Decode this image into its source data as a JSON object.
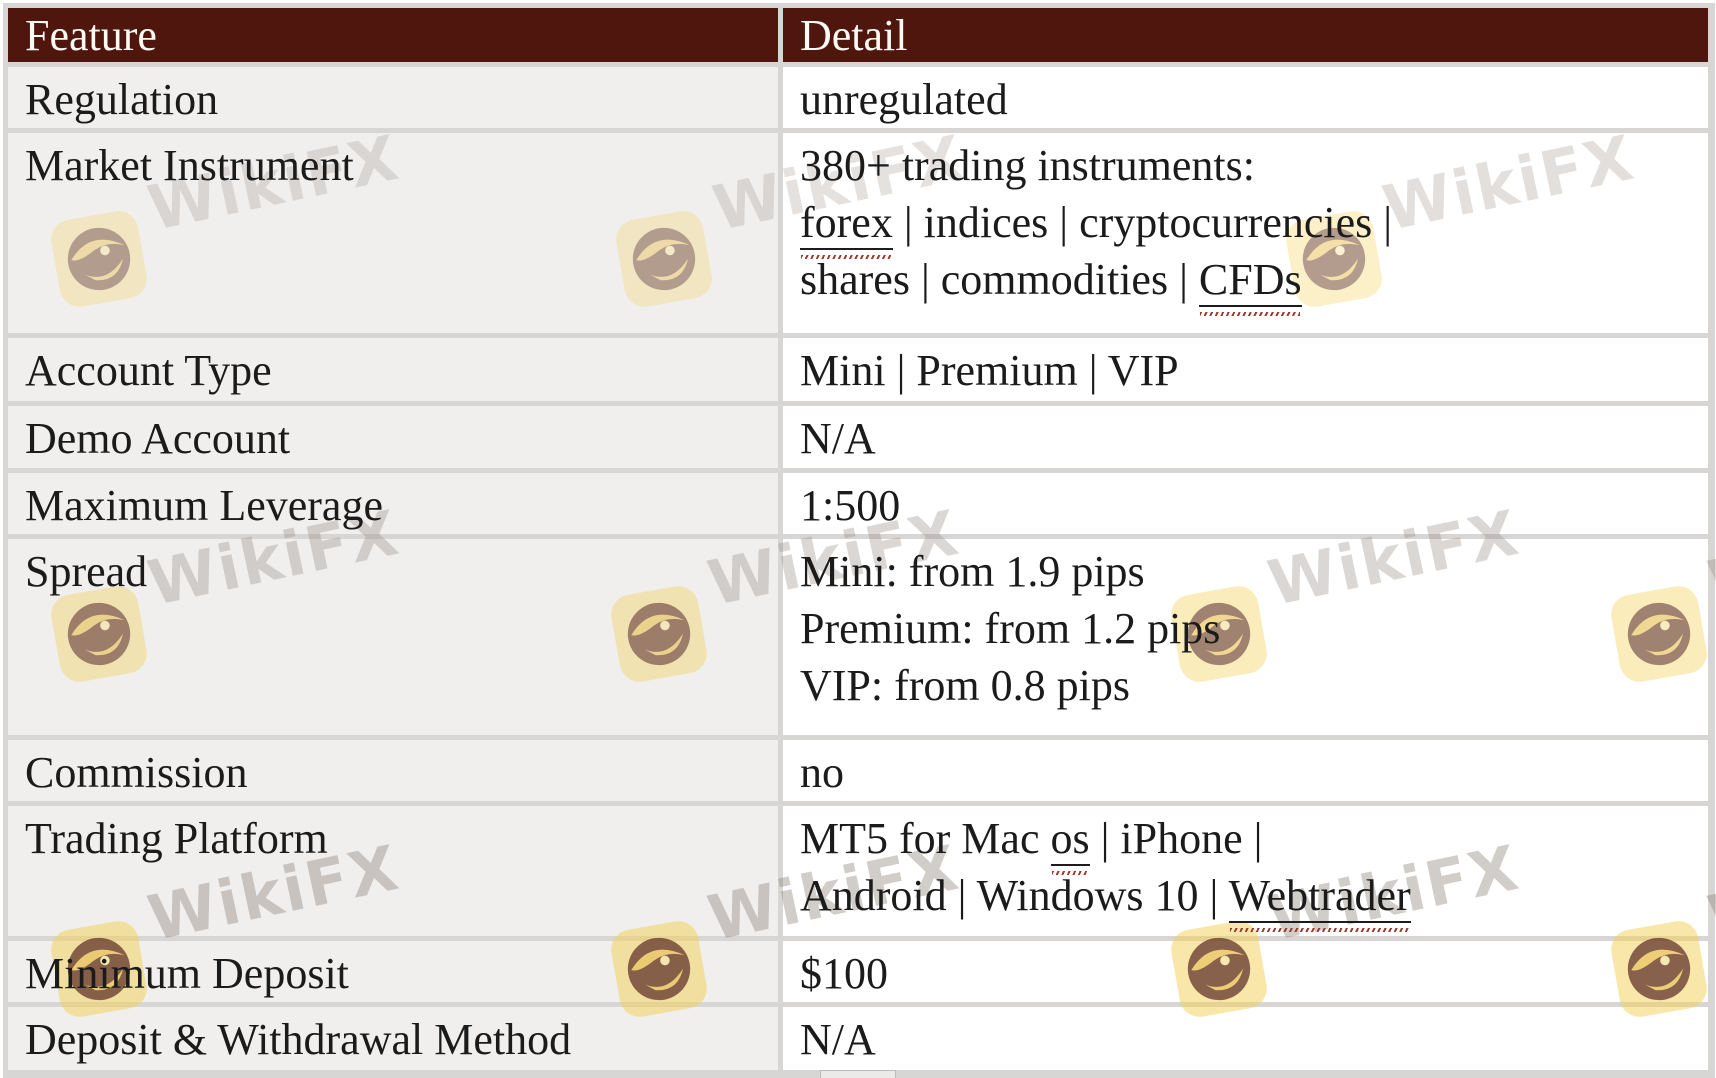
{
  "header": {
    "feature_col": "Feature",
    "detail_col": "Detail"
  },
  "rows": [
    {
      "feature": "Regulation",
      "detail": [
        [
          {
            "t": "unregulated"
          }
        ]
      ]
    },
    {
      "feature": "Market Instrument",
      "detail": [
        [
          {
            "t": "380+ trading instruments:"
          }
        ],
        [
          {
            "t": "forex",
            "link": true
          },
          {
            "t": " | indices | cryptocurrencies |"
          }
        ],
        [
          {
            "t": "shares | commodities | "
          },
          {
            "t": "CFDs",
            "link": true
          }
        ]
      ]
    },
    {
      "feature": "Account Type",
      "detail": [
        [
          {
            "t": "Mini | Premium | VIP"
          }
        ]
      ]
    },
    {
      "feature": "Demo Account",
      "detail": [
        [
          {
            "t": "N/A"
          }
        ]
      ]
    },
    {
      "feature": "Maximum Leverage",
      "detail": [
        [
          {
            "t": "1:500"
          }
        ]
      ]
    },
    {
      "feature": "Spread",
      "detail": [
        [
          {
            "t": "Mini: from 1.9 pips"
          }
        ],
        [
          {
            "t": "Premium: from 1.2 pips"
          }
        ],
        [
          {
            "t": "VIP: from 0.8 pips"
          }
        ]
      ]
    },
    {
      "feature": "Commission",
      "detail": [
        [
          {
            "t": "no"
          }
        ]
      ]
    },
    {
      "feature": "Trading Platform",
      "detail": [
        [
          {
            "t": "MT5 for Mac "
          },
          {
            "t": "os",
            "link": true
          },
          {
            "t": " | iPhone |"
          }
        ],
        [
          {
            "t": "Android | Windows 10 | "
          },
          {
            "t": "Webtrader",
            "link": true
          }
        ]
      ]
    },
    {
      "feature": "Minimum Deposit",
      "detail": [
        [
          {
            "t": "$100"
          }
        ]
      ]
    },
    {
      "feature": "Deposit & Withdrawal Method",
      "detail": [
        [
          {
            "t": "N/A"
          }
        ]
      ]
    }
  ],
  "watermark": {
    "brand": "WikiFX"
  },
  "colors": {
    "header_bg": "#4e160d",
    "header_text": "#fdfaf4",
    "feature_cell_bg": "#f0efee",
    "detail_cell_bg": "#ffffff",
    "frame_gray": "#d8d6d4",
    "body_text": "#1b1b1b",
    "squiggle_red": "#a3392c",
    "watermark_logo_yellow": "#f3d25a",
    "watermark_text_gray": "#8a8076"
  }
}
